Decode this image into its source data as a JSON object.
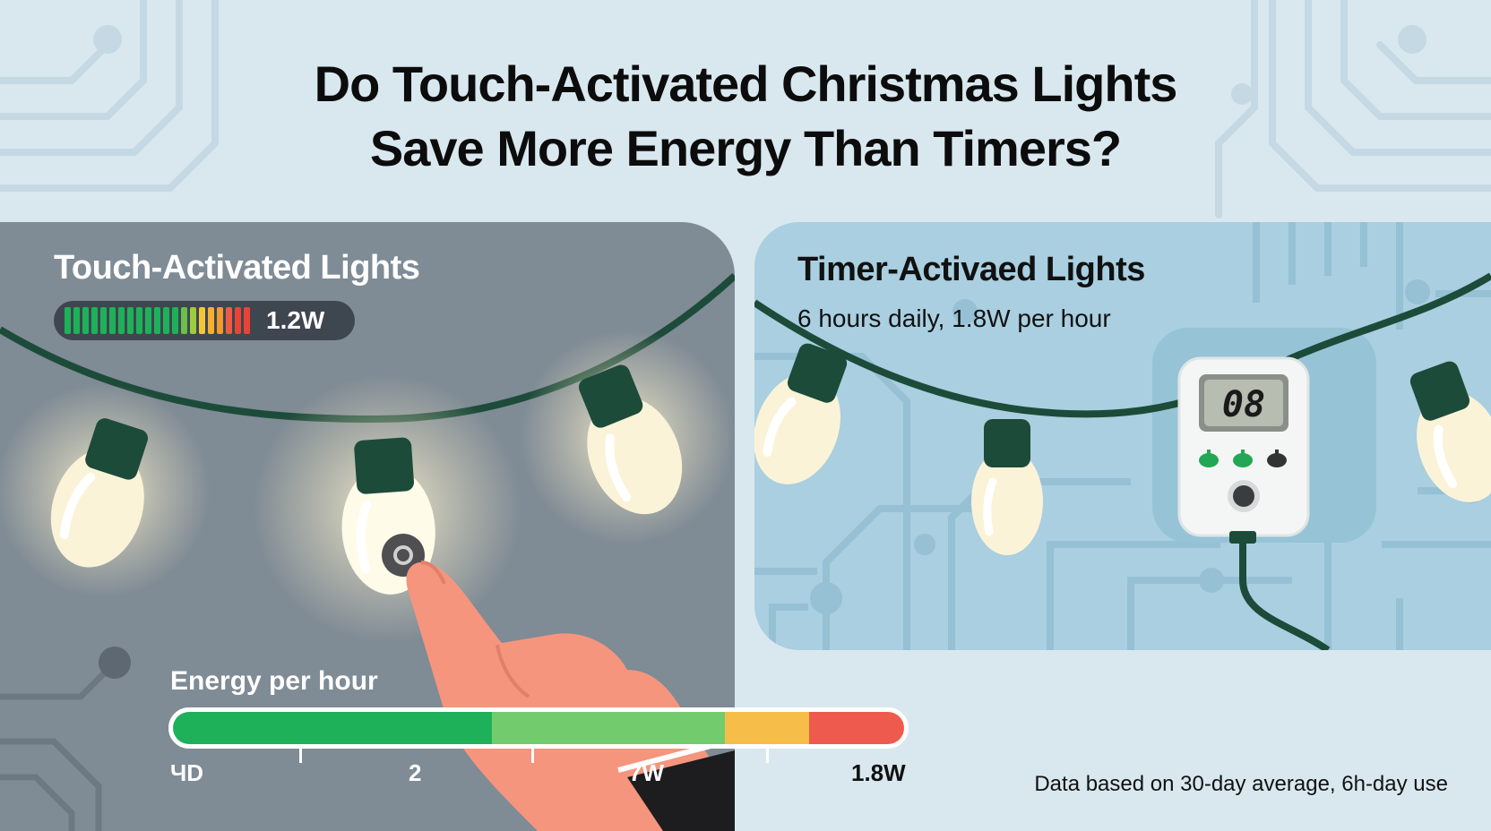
{
  "title": {
    "line1": "Do Touch-Activated Christmas Lights",
    "line2": "Save More Energy Than Timers?"
  },
  "touch_panel": {
    "heading": "Touch-Activated Lights",
    "meter_value": "1.2W",
    "meter_segment_colors": [
      "#1fb15a",
      "#1fb15a",
      "#1fb15a",
      "#1fb15a",
      "#1fb15a",
      "#1fb15a",
      "#1fb15a",
      "#1fb15a",
      "#1fb15a",
      "#1fb15a",
      "#1fb15a",
      "#1fb15a",
      "#1fb15a",
      "#6cc04a",
      "#9ccc3f",
      "#f4c53a",
      "#f4b030",
      "#f29a2e",
      "#ef5a45",
      "#ea4335",
      "#ea4335"
    ],
    "bulb_color": "#fbf3d8",
    "socket_color": "#1d4b3a"
  },
  "timer_panel": {
    "heading": "Timer-Activaed Lights",
    "subtitle": "6 hours daily, 1.8W per hour",
    "timer_display": "08",
    "timer_icons": [
      "leaf-icon",
      "leaf-icon",
      "plug-icon"
    ]
  },
  "energy_scale": {
    "label": "Energy per hour",
    "segment_colors": [
      "#1fb15a",
      "#72cc6e",
      "#f6bd48",
      "#ef5a4e"
    ],
    "tick_labels": [
      "ЧD",
      "2",
      "7W",
      "1.8W"
    ]
  },
  "footnote": "Data based on 30-day average, 6h-day use",
  "colors": {
    "background": "#d9e8ef",
    "left_panel": "#7f8b95",
    "right_panel": "#a9cfe0",
    "wire": "#1d4b3a"
  }
}
